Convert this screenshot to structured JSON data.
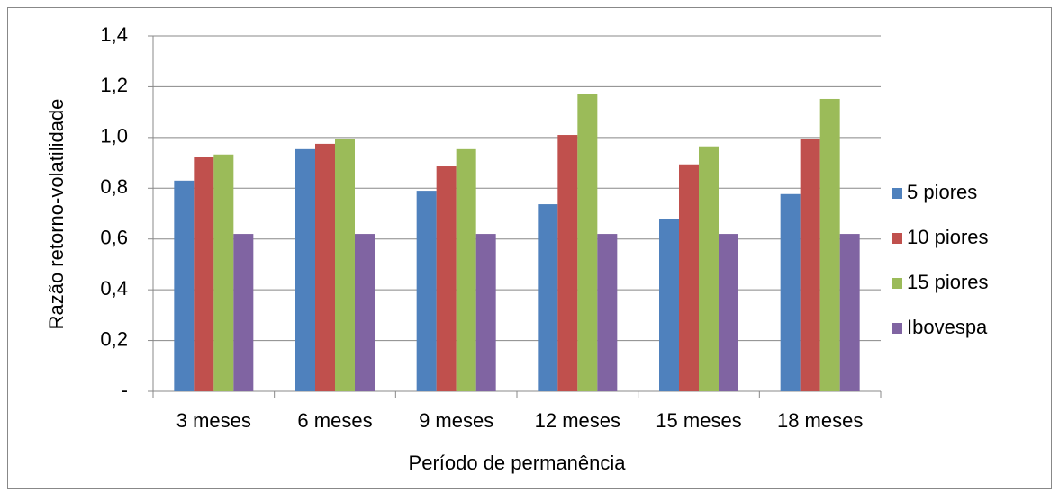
{
  "chart_data": {
    "type": "bar",
    "y_label": "Razão retorno-volatilidade",
    "x_label": "Período de permanência",
    "categories": [
      "3 meses",
      "6 meses",
      "9 meses",
      "12 meses",
      "15 meses",
      "18 meses"
    ],
    "series": [
      {
        "name": "5 piores",
        "color": "#4f81bd",
        "values": [
          0.83,
          0.954,
          0.79,
          0.737,
          0.677,
          0.777
        ]
      },
      {
        "name": "10 piores",
        "color": "#c0504d",
        "values": [
          0.922,
          0.975,
          0.886,
          1.01,
          0.894,
          0.993
        ]
      },
      {
        "name": "15 piores",
        "color": "#9bbb59",
        "values": [
          0.933,
          0.996,
          0.954,
          1.17,
          0.965,
          1.152
        ]
      },
      {
        "name": "Ibovespa",
        "color": "#8064a2",
        "values": [
          0.62,
          0.62,
          0.62,
          0.62,
          0.62,
          0.62
        ]
      }
    ],
    "ylim": [
      0,
      1.4
    ],
    "yticks": [
      {
        "value": 0,
        "label": "-"
      },
      {
        "value": 0.2,
        "label": "0,2"
      },
      {
        "value": 0.4,
        "label": "0,4"
      },
      {
        "value": 0.6,
        "label": "0,6"
      },
      {
        "value": 0.8,
        "label": "0,8"
      },
      {
        "value": 1.0,
        "label": "1,0"
      },
      {
        "value": 1.2,
        "label": "1,2"
      },
      {
        "value": 1.4,
        "label": "1,4"
      }
    ],
    "grid": true,
    "legend": "right"
  }
}
